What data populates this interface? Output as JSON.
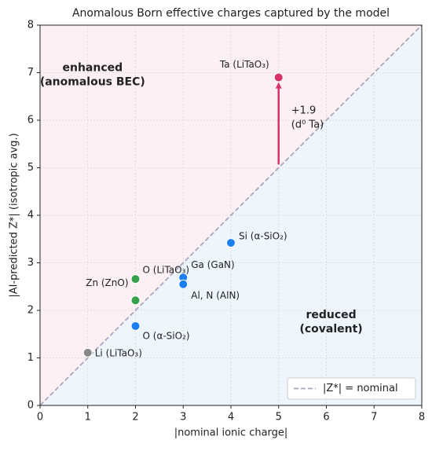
{
  "chart_data": {
    "type": "scatter",
    "title": "Anomalous Born effective charges captured by the model",
    "x_label": "|nominal ionic charge|",
    "y_label": "|AI-predicted Z*|  (isotropic avg.)",
    "x": [
      5,
      4,
      3,
      3,
      2,
      2,
      2,
      1
    ],
    "values": [
      6.9,
      3.42,
      2.69,
      2.55,
      2.66,
      2.21,
      1.67,
      1.11
    ],
    "point_labels": [
      "Ta (LiTaO₃)",
      "Si (α-SiO₂)",
      "Ga (GaN)",
      "Al, N (AlN)",
      "O (LiTaO₃)",
      "Zn (ZnO)",
      "O (α-SiO₂)",
      "Li (LiTaO₃)"
    ],
    "colors": [
      "#d6336c",
      "#1a7ff0",
      "#1a7ff0",
      "#1a7ff0",
      "#37a04a",
      "#37a04a",
      "#1a7ff0",
      "#888888"
    ],
    "xlim": [
      0,
      8
    ],
    "ylim": [
      0,
      8
    ],
    "xticks": [
      0,
      1,
      2,
      3,
      4,
      5,
      6,
      7,
      8
    ],
    "yticks": [
      0,
      1,
      2,
      3,
      4,
      5,
      6,
      7,
      8
    ],
    "grid": true,
    "region_labels": {
      "enhanced": [
        "enhanced",
        "(anomalous BEC)"
      ],
      "reduced": [
        "reduced",
        "(covalent)"
      ]
    },
    "region_colors": {
      "enhanced": "#fcf0f4",
      "reduced": "#eef5fd"
    },
    "annotation": {
      "lines": [
        "+1.9",
        "(d⁰ Ta)"
      ],
      "x": 5,
      "y_start": 5.07,
      "y_end": 6.8,
      "color": "#d6336c"
    },
    "reference_line": {
      "name": "|Z*| = nominal",
      "color": "#a8a8b8"
    },
    "legend_position": "lower right"
  }
}
